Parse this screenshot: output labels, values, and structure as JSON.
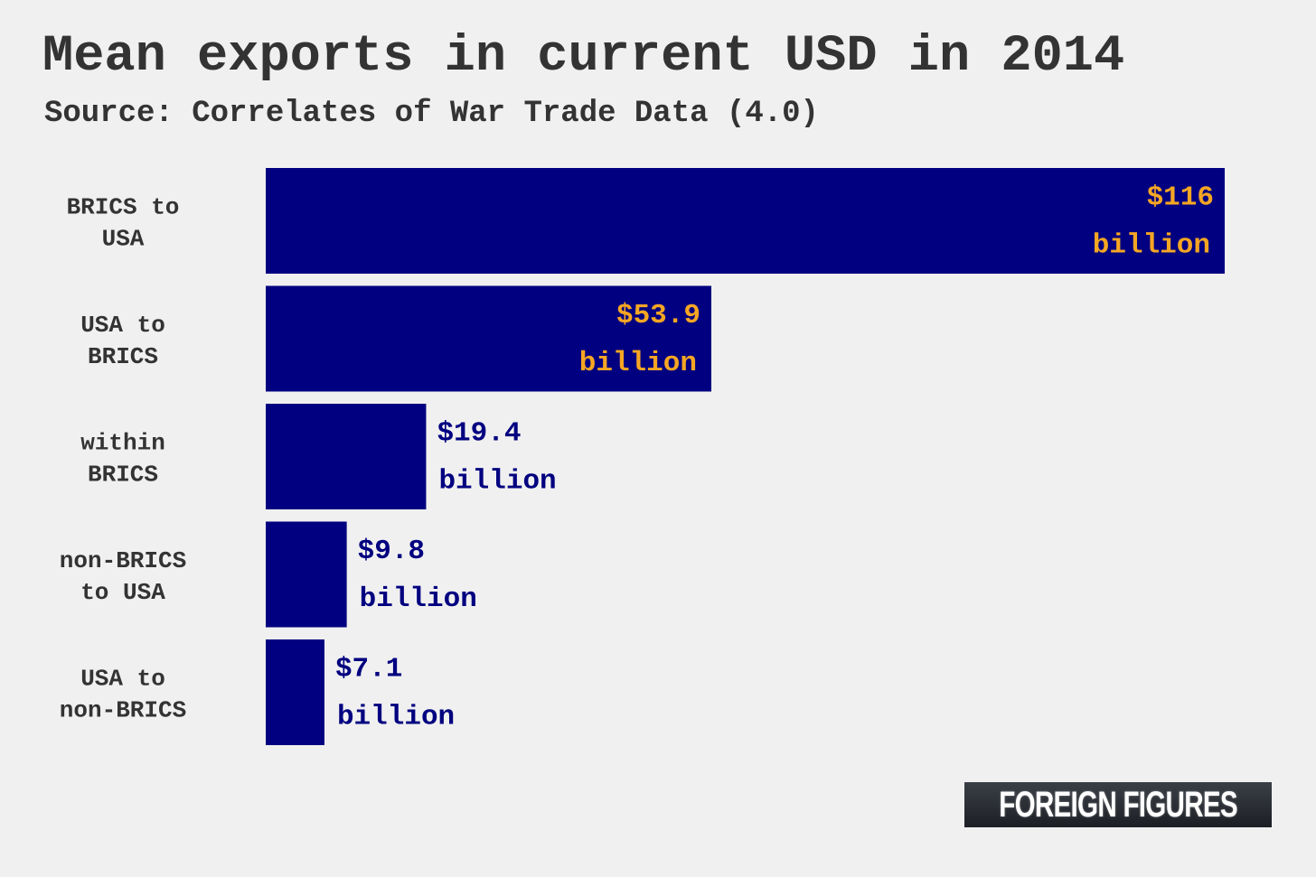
{
  "chart_data": {
    "type": "bar",
    "orientation": "horizontal",
    "title": "Mean exports in current USD in 2014",
    "subtitle": "Source: Correlates of War Trade Data (4.0)",
    "categories": [
      [
        "BRICS to",
        "USA"
      ],
      [
        "USA to",
        "BRICS"
      ],
      [
        "within",
        "BRICS"
      ],
      [
        "non-BRICS",
        "to USA"
      ],
      [
        "USA to",
        "non-BRICS"
      ]
    ],
    "values": [
      116,
      53.9,
      19.4,
      9.8,
      7.1
    ],
    "unit": "billion USD",
    "value_labels": [
      [
        "$116",
        "billion"
      ],
      [
        "$53.9",
        "billion"
      ],
      [
        "$19.4",
        "billion"
      ],
      [
        "$9.8",
        "billion"
      ],
      [
        "$7.1",
        "billion"
      ]
    ],
    "xlim": [
      0,
      116
    ],
    "grid": false,
    "colors": {
      "bar": "#000080",
      "label_inside": "#f5a623",
      "label_outside": "#000080"
    }
  },
  "logo": {
    "text": "FOREIGN FIGURES"
  }
}
